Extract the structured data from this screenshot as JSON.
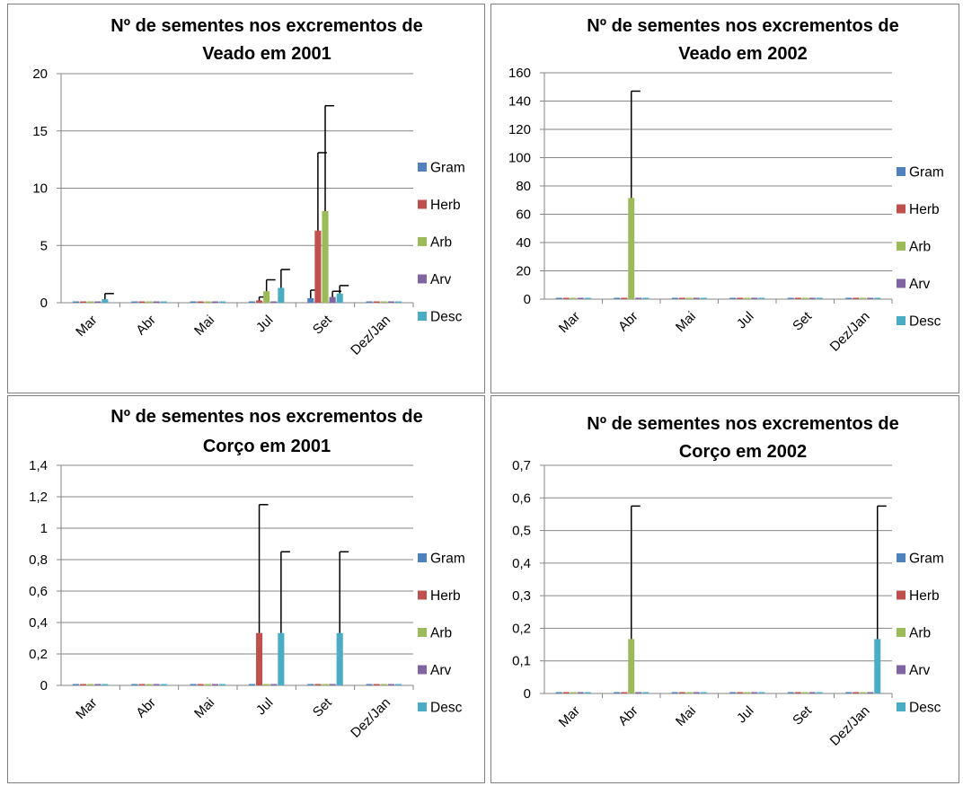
{
  "chart_data": [
    {
      "type": "bar",
      "title_line1": "Nº de sementes nos excrementos de",
      "title_line2": "Veado em 2001",
      "categories": [
        "Mar",
        "Abr",
        "Mai",
        "Jul",
        "Set",
        "Dez/Jan"
      ],
      "ylim": [
        0,
        20
      ],
      "yticks": [
        "0",
        "5",
        "10",
        "15",
        "20"
      ],
      "grid": true,
      "legend_position": "right",
      "error_bars": true,
      "series": [
        {
          "name": "Gram",
          "color": "#4f81bd",
          "values": [
            0,
            0,
            0,
            0,
            0.4,
            0
          ],
          "errors": [
            0,
            0,
            0,
            0,
            0.7,
            0
          ]
        },
        {
          "name": "Herb",
          "color": "#c0504d",
          "values": [
            0,
            0,
            0,
            0.2,
            6.3,
            0
          ],
          "errors": [
            0,
            0,
            0,
            0.3,
            6.8,
            0
          ]
        },
        {
          "name": "Arb",
          "color": "#9bbb59",
          "values": [
            0,
            0,
            0,
            1.0,
            8.0,
            0
          ],
          "errors": [
            0,
            0,
            0,
            1.0,
            9.2,
            0
          ]
        },
        {
          "name": "Arv",
          "color": "#8064a2",
          "values": [
            0,
            0,
            0,
            0,
            0.5,
            0
          ],
          "errors": [
            0,
            0,
            0,
            0,
            0.5,
            0
          ]
        },
        {
          "name": "Desc",
          "color": "#4bacc6",
          "values": [
            0.3,
            0,
            0,
            1.3,
            0.8,
            0
          ],
          "errors": [
            0.5,
            0,
            0,
            1.6,
            0.7,
            0
          ]
        }
      ]
    },
    {
      "type": "bar",
      "title_line1": "Nº de sementes nos excrementos de",
      "title_line2": "Veado em 2002",
      "categories": [
        "Mar",
        "Abr",
        "Mai",
        "Jul",
        "Set",
        "Dez/Jan"
      ],
      "ylim": [
        0,
        160
      ],
      "yticks": [
        "0",
        "20",
        "40",
        "60",
        "80",
        "100",
        "120",
        "140",
        "160"
      ],
      "grid": true,
      "legend_position": "right",
      "error_bars": true,
      "series": [
        {
          "name": "Gram",
          "color": "#4f81bd",
          "values": [
            0,
            0,
            0,
            0,
            0,
            0
          ],
          "errors": [
            0,
            0,
            0,
            0,
            0,
            0
          ]
        },
        {
          "name": "Herb",
          "color": "#c0504d",
          "values": [
            0,
            0,
            0,
            0,
            0,
            0
          ],
          "errors": [
            0,
            0,
            0,
            0,
            0,
            0
          ]
        },
        {
          "name": "Arb",
          "color": "#9bbb59",
          "values": [
            0,
            71.5,
            0,
            0,
            0,
            0
          ],
          "errors": [
            0,
            75.5,
            0,
            0,
            0,
            0
          ]
        },
        {
          "name": "Arv",
          "color": "#8064a2",
          "values": [
            0,
            0,
            0,
            0,
            0,
            0
          ],
          "errors": [
            0,
            0,
            0,
            0,
            0,
            0
          ]
        },
        {
          "name": "Desc",
          "color": "#4bacc6",
          "values": [
            0,
            0,
            0,
            0,
            0,
            0
          ],
          "errors": [
            0,
            0,
            0,
            0,
            0,
            0
          ]
        }
      ]
    },
    {
      "type": "bar",
      "title_line1": "Nº de sementes nos excrementos de",
      "title_line2": "Corço em 2001",
      "categories": [
        "Mar",
        "Abr",
        "Mai",
        "Jul",
        "Set",
        "Dez/Jan"
      ],
      "ylim": [
        0,
        1.4
      ],
      "yticks": [
        "0",
        "0,2",
        "0,4",
        "0,6",
        "0,8",
        "1",
        "1,2",
        "1,4"
      ],
      "grid": true,
      "legend_position": "right",
      "error_bars": true,
      "series": [
        {
          "name": "Gram",
          "color": "#4f81bd",
          "values": [
            0,
            0,
            0,
            0,
            0,
            0
          ],
          "errors": [
            0,
            0,
            0,
            0,
            0,
            0
          ]
        },
        {
          "name": "Herb",
          "color": "#c0504d",
          "values": [
            0,
            0,
            0,
            0.333,
            0,
            0
          ],
          "errors": [
            0,
            0,
            0,
            0.817,
            0,
            0
          ]
        },
        {
          "name": "Arb",
          "color": "#9bbb59",
          "values": [
            0,
            0,
            0,
            0,
            0,
            0
          ],
          "errors": [
            0,
            0,
            0,
            0,
            0,
            0
          ]
        },
        {
          "name": "Arv",
          "color": "#8064a2",
          "values": [
            0,
            0,
            0,
            0,
            0,
            0
          ],
          "errors": [
            0,
            0,
            0,
            0,
            0,
            0
          ]
        },
        {
          "name": "Desc",
          "color": "#4bacc6",
          "values": [
            0,
            0,
            0,
            0.333,
            0.333,
            0
          ],
          "errors": [
            0,
            0,
            0,
            0.517,
            0.517,
            0
          ]
        }
      ]
    },
    {
      "type": "bar",
      "title_line1": "Nº de sementes nos excrementos de",
      "title_line2": "Corço em 2002",
      "categories": [
        "Mar",
        "Abr",
        "Mai",
        "Jul",
        "Set",
        "Dez/Jan"
      ],
      "ylim": [
        0,
        0.7
      ],
      "yticks": [
        "0",
        "0,1",
        "0,2",
        "0,3",
        "0,4",
        "0,5",
        "0,6",
        "0,7"
      ],
      "grid": true,
      "legend_position": "right",
      "error_bars": true,
      "series": [
        {
          "name": "Gram",
          "color": "#4f81bd",
          "values": [
            0,
            0,
            0,
            0,
            0,
            0
          ],
          "errors": [
            0,
            0,
            0,
            0,
            0,
            0
          ]
        },
        {
          "name": "Herb",
          "color": "#c0504d",
          "values": [
            0,
            0,
            0,
            0,
            0,
            0
          ],
          "errors": [
            0,
            0,
            0,
            0,
            0,
            0
          ]
        },
        {
          "name": "Arb",
          "color": "#9bbb59",
          "values": [
            0,
            0.167,
            0,
            0,
            0,
            0
          ],
          "errors": [
            0,
            0.408,
            0,
            0,
            0,
            0
          ]
        },
        {
          "name": "Arv",
          "color": "#8064a2",
          "values": [
            0,
            0,
            0,
            0,
            0,
            0
          ],
          "errors": [
            0,
            0,
            0,
            0,
            0,
            0
          ]
        },
        {
          "name": "Desc",
          "color": "#4bacc6",
          "values": [
            0,
            0,
            0,
            0,
            0,
            0.167
          ],
          "errors": [
            0,
            0,
            0,
            0,
            0,
            0.408
          ]
        }
      ]
    }
  ]
}
